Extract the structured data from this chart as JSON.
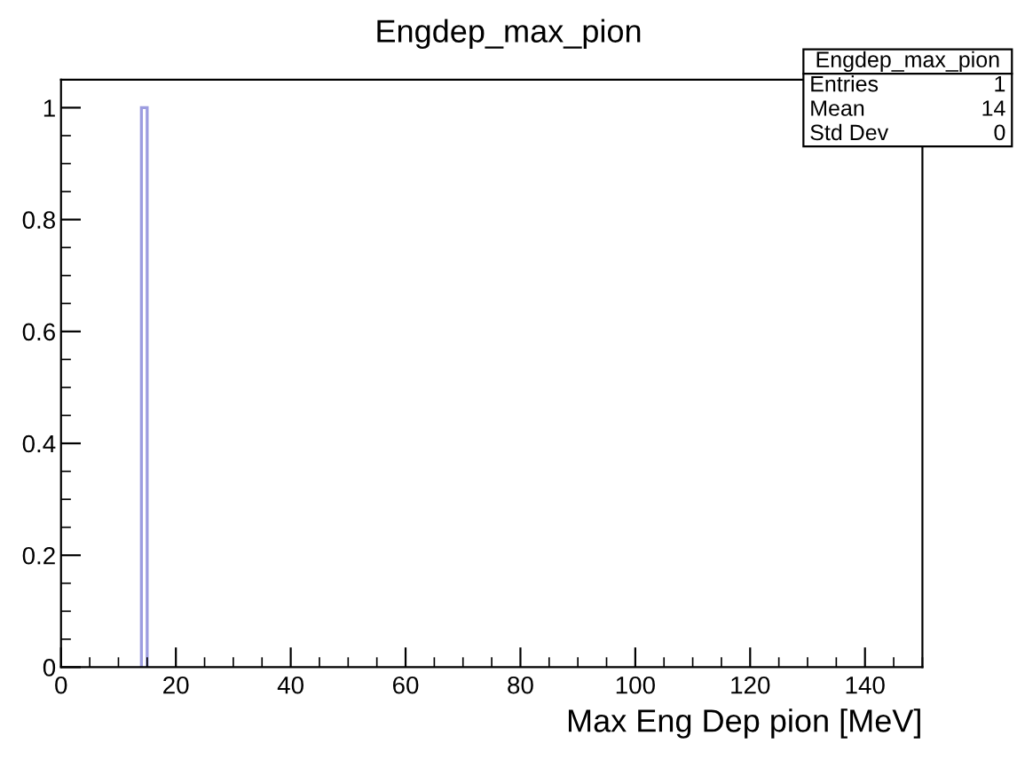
{
  "chart_data": {
    "type": "histogram",
    "title": "Engdep_max_pion",
    "xlabel": "Max Eng Dep pion [MeV]",
    "bins": [
      14,
      15
    ],
    "values": [
      1
    ],
    "color": "#9d9de0",
    "xlim": [
      0,
      150
    ],
    "xticks": [
      0,
      20,
      40,
      60,
      80,
      100,
      120,
      140
    ],
    "ylim": [
      0,
      1.05
    ],
    "yticks": [
      0,
      0.2,
      0.4,
      0.6,
      0.8,
      1
    ],
    "grid": false,
    "legend": false,
    "annotations": [
      "Engdep_max_pion",
      "Entries",
      "1",
      "Mean",
      "14",
      "Std Dev",
      "0"
    ]
  }
}
